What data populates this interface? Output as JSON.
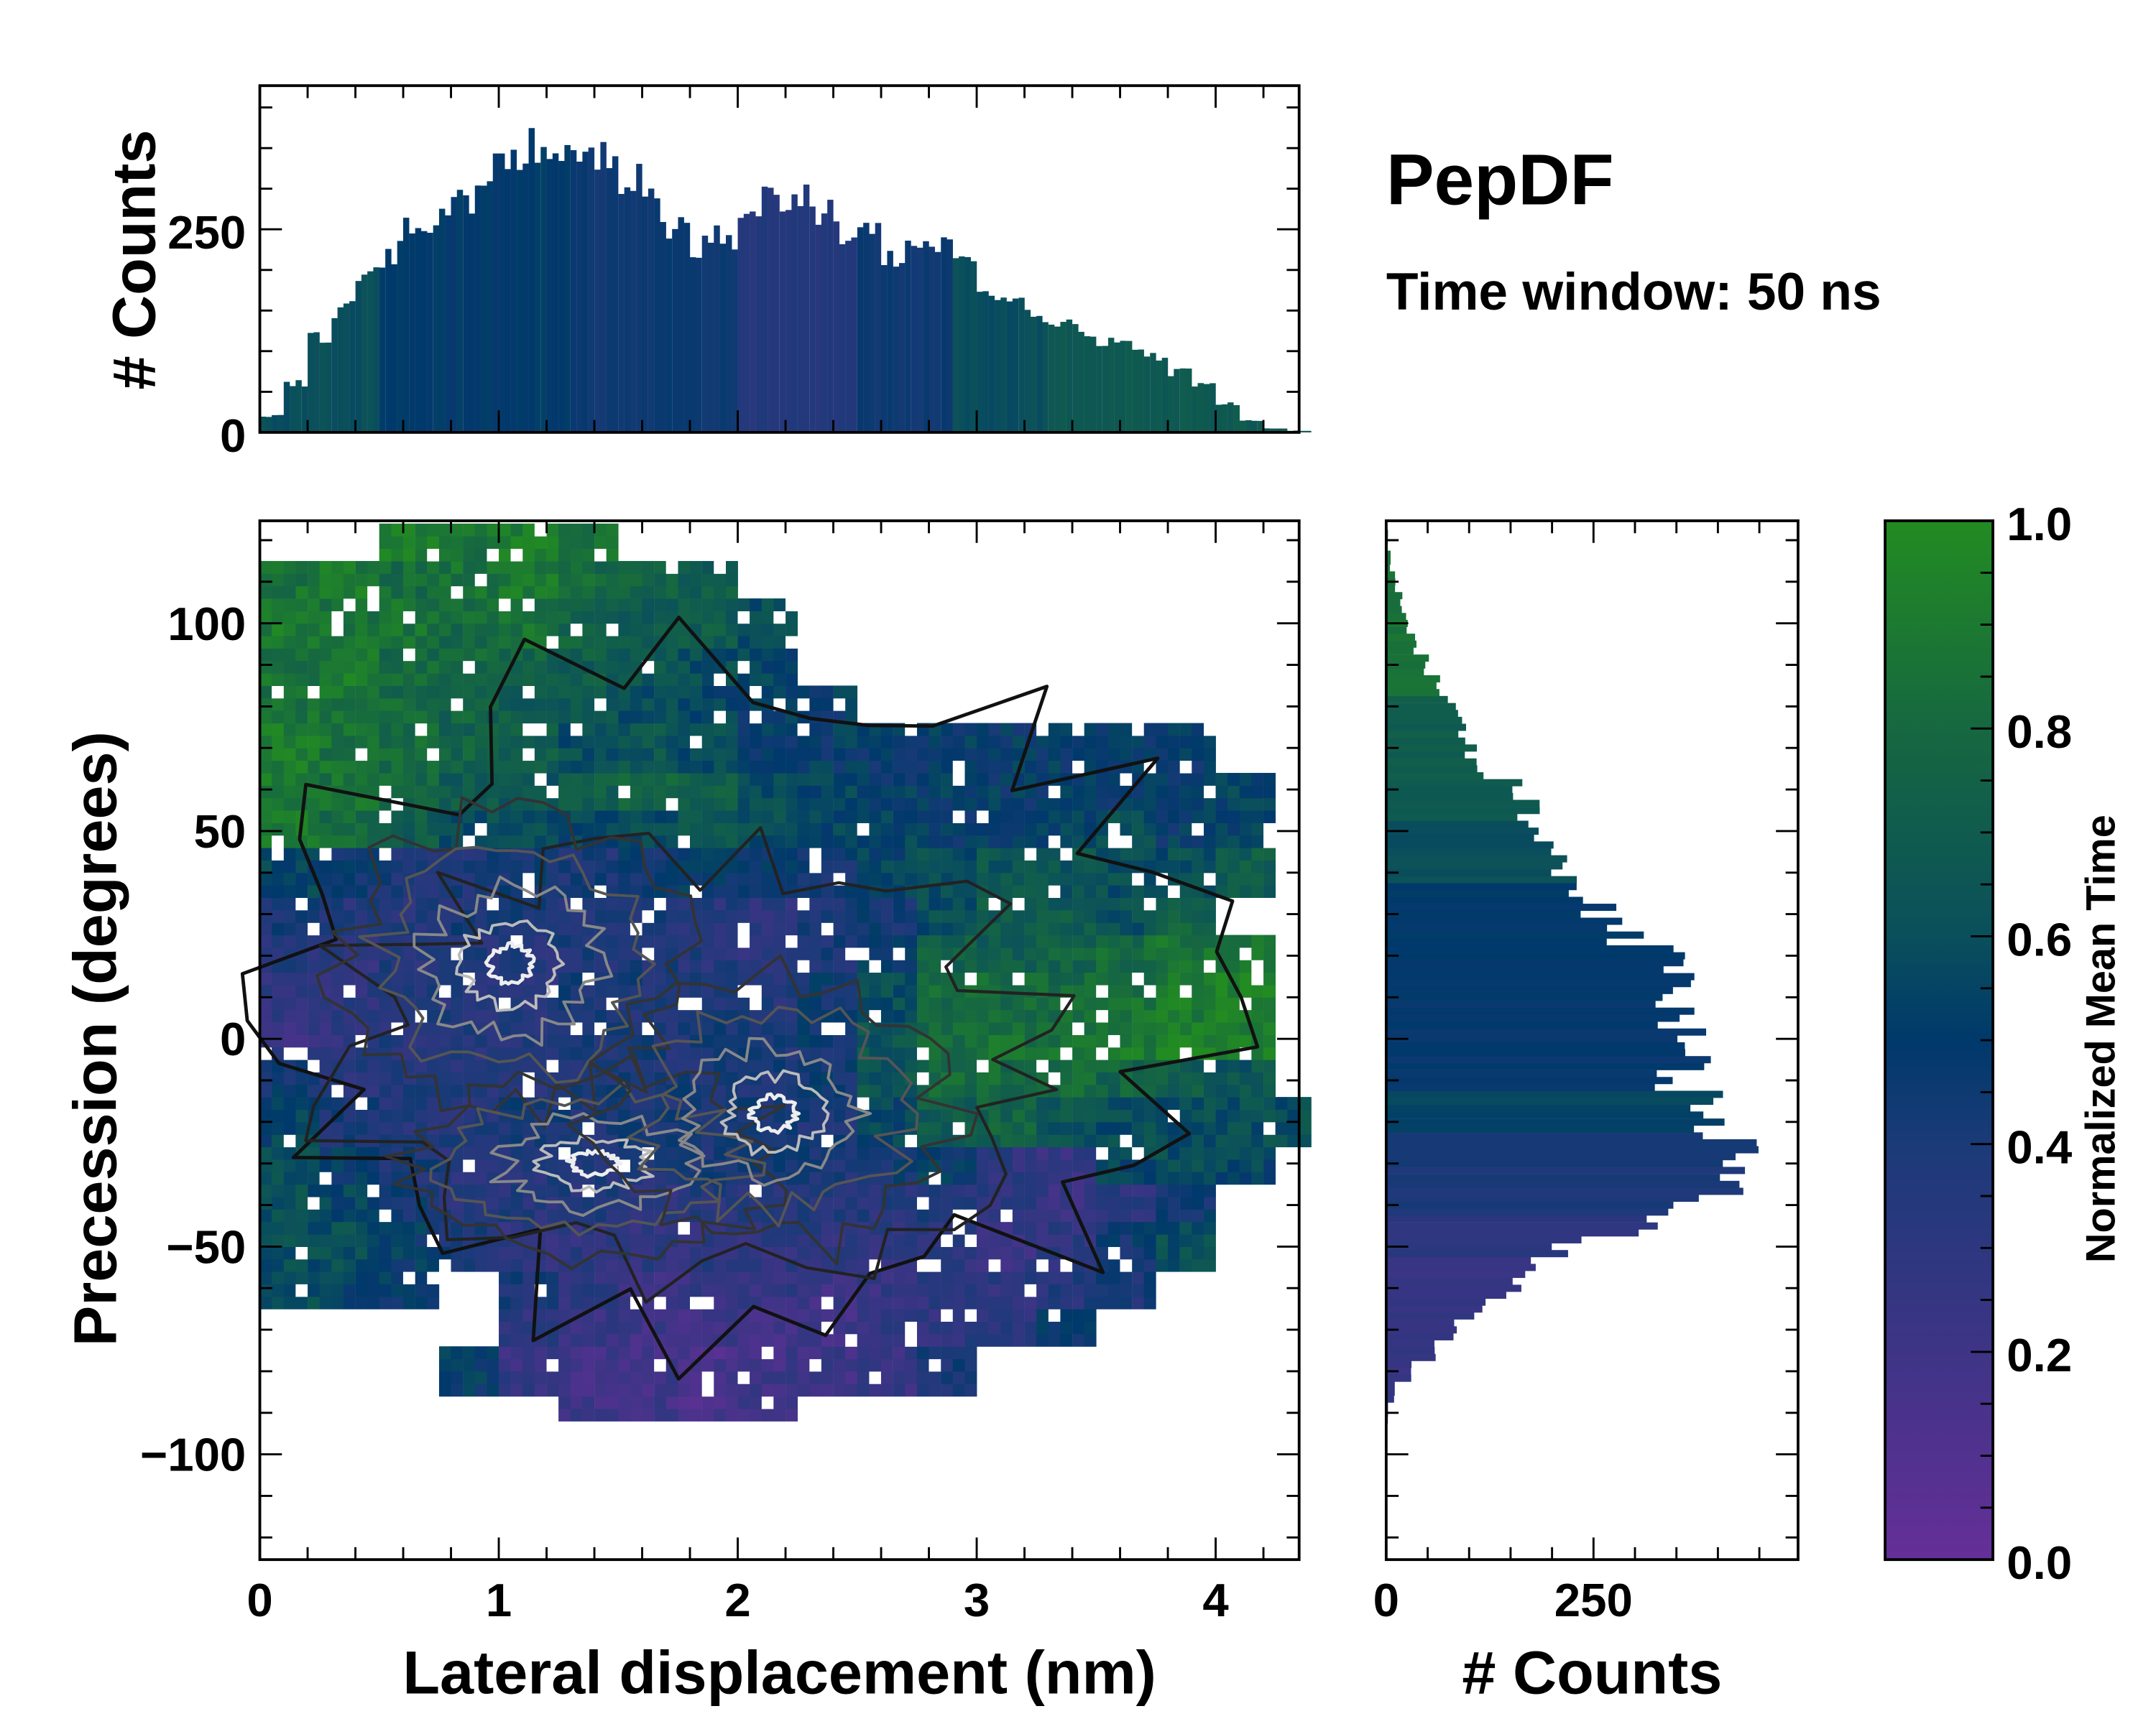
{
  "chart_data": {
    "title": "PepDF",
    "subtitle": "Time window: 50 ns",
    "main": {
      "type": "heatmap",
      "xlabel": "Lateral displacement (nm)",
      "ylabel": "Precession (degrees)",
      "xlim": [
        0,
        4.35
      ],
      "ylim": [
        -125,
        125
      ],
      "xticks": [
        0,
        1,
        2,
        3,
        4
      ],
      "xtick_labels": [
        "0",
        "1",
        "2",
        "3",
        "4"
      ],
      "yticks": [
        100,
        50,
        0,
        -50,
        -100
      ],
      "ytick_labels": [
        "100",
        "50",
        "0",
        "−50",
        "−100"
      ],
      "grid_x_centers": [
        0.125,
        0.375,
        0.625,
        0.875,
        1.125,
        1.375,
        1.625,
        1.875,
        2.125,
        2.375,
        2.625,
        2.875,
        3.125,
        3.375,
        3.625,
        3.875,
        4.125,
        4.375
      ],
      "grid_y_centers": [
        120,
        110,
        100,
        90,
        80,
        70,
        60,
        50,
        40,
        30,
        20,
        10,
        0,
        -10,
        -20,
        -30,
        -40,
        -50,
        -60,
        -70,
        -80,
        -90
      ],
      "mean_time": [
        [
          null,
          null,
          0.9,
          0.85,
          0.9,
          0.85,
          null,
          null,
          null,
          null,
          null,
          null,
          null,
          null,
          null,
          null,
          null,
          null
        ],
        [
          0.85,
          0.9,
          0.8,
          0.85,
          0.9,
          0.8,
          0.75,
          0.7,
          null,
          null,
          null,
          null,
          null,
          null,
          null,
          null,
          null,
          null
        ],
        [
          0.9,
          0.85,
          0.85,
          0.8,
          0.85,
          0.75,
          0.7,
          0.7,
          0.6,
          null,
          null,
          null,
          null,
          null,
          null,
          null,
          null,
          null
        ],
        [
          0.85,
          0.9,
          0.8,
          0.8,
          0.75,
          0.7,
          0.65,
          0.6,
          0.55,
          null,
          null,
          null,
          null,
          null,
          null,
          null,
          null,
          null
        ],
        [
          0.85,
          0.85,
          0.8,
          0.75,
          0.7,
          0.65,
          0.6,
          0.55,
          0.5,
          0.5,
          null,
          null,
          null,
          null,
          null,
          null,
          null,
          null
        ],
        [
          0.9,
          0.85,
          0.8,
          0.75,
          0.7,
          0.6,
          0.65,
          0.6,
          0.5,
          0.5,
          0.5,
          0.5,
          0.5,
          0.5,
          0.5,
          0.5,
          null,
          null
        ],
        [
          0.9,
          0.85,
          0.8,
          0.7,
          0.65,
          0.7,
          0.75,
          0.7,
          0.6,
          0.55,
          0.5,
          0.5,
          0.5,
          0.5,
          0.5,
          0.5,
          0.55,
          null
        ],
        [
          0.9,
          0.8,
          0.7,
          0.6,
          0.6,
          0.55,
          0.6,
          0.65,
          0.6,
          0.55,
          0.55,
          0.5,
          0.5,
          0.55,
          0.6,
          0.5,
          0.55,
          null
        ],
        [
          0.55,
          0.45,
          0.4,
          0.4,
          0.45,
          0.4,
          0.45,
          0.5,
          0.5,
          0.45,
          0.55,
          0.6,
          0.65,
          0.65,
          0.6,
          0.6,
          0.7,
          null
        ],
        [
          0.4,
          0.35,
          0.35,
          0.4,
          0.4,
          0.35,
          0.4,
          0.35,
          0.3,
          0.4,
          0.45,
          0.6,
          0.7,
          0.7,
          0.6,
          0.75,
          null,
          null
        ],
        [
          0.35,
          0.3,
          0.35,
          0.35,
          0.35,
          0.4,
          0.4,
          0.35,
          0.3,
          0.4,
          0.5,
          0.75,
          0.7,
          0.75,
          0.8,
          0.85,
          0.9,
          null
        ],
        [
          0.3,
          0.3,
          0.35,
          0.35,
          0.35,
          0.4,
          0.4,
          0.4,
          0.35,
          0.45,
          0.6,
          0.8,
          0.8,
          0.8,
          0.85,
          0.9,
          0.95,
          null
        ],
        [
          0.25,
          0.3,
          0.35,
          0.35,
          0.35,
          0.4,
          0.4,
          0.4,
          0.4,
          0.45,
          0.65,
          0.8,
          0.85,
          0.85,
          0.9,
          0.95,
          0.9,
          null
        ],
        [
          0.45,
          0.35,
          0.35,
          0.35,
          0.35,
          0.4,
          0.4,
          0.4,
          0.4,
          0.45,
          0.65,
          0.8,
          0.8,
          0.8,
          0.75,
          0.7,
          0.65,
          null
        ],
        [
          0.55,
          0.4,
          0.35,
          0.35,
          0.4,
          0.4,
          0.4,
          0.4,
          0.4,
          0.4,
          0.55,
          0.7,
          0.75,
          0.65,
          0.6,
          0.6,
          0.6,
          0.6
        ],
        [
          0.6,
          0.5,
          0.4,
          0.35,
          0.35,
          0.35,
          0.35,
          0.4,
          0.4,
          0.4,
          0.45,
          0.5,
          0.3,
          0.25,
          0.55,
          0.6,
          0.55,
          null
        ],
        [
          0.6,
          0.55,
          0.45,
          0.35,
          0.35,
          0.35,
          0.3,
          0.35,
          0.35,
          0.35,
          0.35,
          0.35,
          0.3,
          0.25,
          0.3,
          0.45,
          null,
          null
        ],
        [
          0.6,
          0.6,
          0.5,
          0.4,
          0.3,
          0.3,
          0.3,
          0.3,
          0.3,
          0.3,
          0.3,
          0.3,
          0.25,
          0.3,
          0.45,
          0.6,
          null,
          null
        ],
        [
          0.6,
          0.55,
          0.5,
          null,
          0.4,
          0.3,
          0.25,
          0.25,
          0.25,
          0.2,
          0.25,
          0.3,
          0.3,
          0.35,
          0.4,
          null,
          null,
          null
        ],
        [
          null,
          null,
          null,
          null,
          0.3,
          0.25,
          0.2,
          0.2,
          0.2,
          0.2,
          0.25,
          0.3,
          0.3,
          0.5,
          null,
          null,
          null,
          null
        ],
        [
          null,
          null,
          null,
          0.5,
          0.25,
          0.2,
          0.2,
          0.15,
          0.2,
          0.2,
          0.25,
          0.4,
          null,
          null,
          null,
          null,
          null,
          null
        ],
        [
          null,
          null,
          null,
          null,
          null,
          0.2,
          0.2,
          0.15,
          0.2,
          null,
          null,
          null,
          null,
          null,
          null,
          null,
          null,
          null
        ]
      ],
      "density_peaks": [
        {
          "x": 1.05,
          "y": 18,
          "rx": 0.45,
          "ry": 22
        },
        {
          "x": 1.4,
          "y": -30,
          "rx": 0.5,
          "ry": 14
        },
        {
          "x": 2.15,
          "y": -18,
          "rx": 0.45,
          "ry": 20
        }
      ]
    },
    "top_hist": {
      "type": "bar",
      "ylabel": "# Counts",
      "ylim": [
        0,
        427
      ],
      "yticks": [
        0,
        250
      ],
      "ytick_labels": [
        "0",
        "250"
      ],
      "bin_width": 0.1,
      "x": [
        0,
        0.1,
        0.2,
        0.3,
        0.4,
        0.5,
        0.6,
        0.7,
        0.8,
        0.9,
        1.0,
        1.1,
        1.2,
        1.3,
        1.4,
        1.5,
        1.6,
        1.7,
        1.8,
        1.9,
        2.0,
        2.1,
        2.2,
        2.3,
        2.4,
        2.5,
        2.6,
        2.7,
        2.8,
        2.9,
        3.0,
        3.1,
        3.2,
        3.3,
        3.4,
        3.5,
        3.6,
        3.7,
        3.8,
        3.9,
        4.0,
        4.1,
        4.2,
        4.3
      ],
      "counts": [
        20,
        60,
        120,
        150,
        190,
        220,
        245,
        260,
        290,
        330,
        350,
        350,
        340,
        355,
        340,
        310,
        280,
        250,
        225,
        240,
        265,
        285,
        290,
        275,
        250,
        240,
        215,
        220,
        225,
        210,
        175,
        160,
        145,
        130,
        125,
        110,
        110,
        95,
        75,
        60,
        35,
        15,
        5,
        2
      ],
      "mean_time": [
        0.6,
        0.6,
        0.6,
        0.6,
        0.6,
        0.5,
        0.5,
        0.5,
        0.5,
        0.5,
        0.5,
        0.5,
        0.5,
        0.45,
        0.45,
        0.45,
        0.45,
        0.45,
        0.45,
        0.45,
        0.35,
        0.35,
        0.35,
        0.35,
        0.35,
        0.45,
        0.45,
        0.45,
        0.45,
        0.6,
        0.6,
        0.6,
        0.6,
        0.68,
        0.68,
        0.68,
        0.68,
        0.68,
        0.68,
        0.68,
        0.68,
        0.68,
        0.68,
        0.68
      ]
    },
    "right_hist": {
      "type": "bar",
      "xlabel": "# Counts",
      "xlim": [
        0,
        497
      ],
      "xticks": [
        0,
        250
      ],
      "xtick_labels": [
        "0",
        "250"
      ],
      "bin_width": 5,
      "y": [
        -90,
        -85,
        -80,
        -75,
        -70,
        -65,
        -60,
        -55,
        -50,
        -45,
        -40,
        -35,
        -30,
        -25,
        -20,
        -15,
        -10,
        -5,
        0,
        5,
        10,
        15,
        20,
        25,
        30,
        35,
        40,
        45,
        50,
        55,
        60,
        65,
        70,
        75,
        80,
        85,
        90,
        95,
        100,
        105,
        110,
        115,
        120
      ],
      "counts": [
        2,
        10,
        30,
        55,
        80,
        110,
        150,
        180,
        220,
        300,
        360,
        440,
        430,
        410,
        390,
        370,
        360,
        370,
        380,
        350,
        350,
        340,
        330,
        290,
        260,
        230,
        210,
        200,
        190,
        170,
        150,
        120,
        100,
        90,
        80,
        65,
        50,
        35,
        25,
        18,
        10,
        5,
        2
      ],
      "mean_time": [
        0.25,
        0.25,
        0.25,
        0.25,
        0.25,
        0.25,
        0.25,
        0.25,
        0.3,
        0.3,
        0.4,
        0.4,
        0.4,
        0.4,
        0.55,
        0.55,
        0.48,
        0.48,
        0.48,
        0.48,
        0.48,
        0.5,
        0.5,
        0.5,
        0.5,
        0.5,
        0.6,
        0.6,
        0.6,
        0.7,
        0.7,
        0.7,
        0.7,
        0.7,
        0.7,
        0.85,
        0.85,
        0.85,
        0.85,
        0.85,
        0.85,
        0.85,
        0.85
      ]
    },
    "colorbar": {
      "label": "Normalized Mean Time",
      "range": [
        0,
        1
      ],
      "ticks": [
        0,
        0.2,
        0.4,
        0.6,
        0.8,
        1.0
      ],
      "tick_labels": [
        "0.0",
        "0.2",
        "0.4",
        "0.6",
        "0.8",
        "1.0"
      ],
      "colormap": [
        {
          "v": 0.0,
          "color": "#652f98"
        },
        {
          "v": 0.2,
          "color": "#3e3486"
        },
        {
          "v": 0.4,
          "color": "#1b3a78"
        },
        {
          "v": 0.5,
          "color": "#00396b"
        },
        {
          "v": 0.6,
          "color": "#0a4f5c"
        },
        {
          "v": 0.8,
          "color": "#166840"
        },
        {
          "v": 1.0,
          "color": "#228b22"
        }
      ]
    }
  }
}
